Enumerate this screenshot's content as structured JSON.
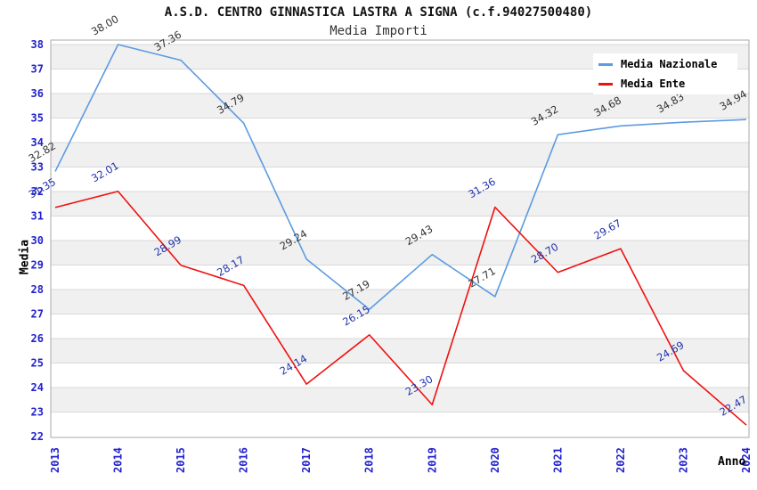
{
  "chart_data": {
    "type": "line",
    "title": "A.S.D. CENTRO GINNASTICA LASTRA A SIGNA (c.f.94027500480)",
    "subtitle": "Media Importi",
    "xlabel": "Anno",
    "ylabel": "Media",
    "x": [
      "2013",
      "2014",
      "2015",
      "2016",
      "2017",
      "2018",
      "2019",
      "2020",
      "2021",
      "2022",
      "2023",
      "2024"
    ],
    "ylim": [
      22,
      38
    ],
    "yticks": [
      22,
      23,
      24,
      25,
      26,
      27,
      28,
      29,
      30,
      31,
      32,
      33,
      34,
      35,
      36,
      37,
      38
    ],
    "grid": "horizontal-alternating-bands",
    "legend_position": "top-right-inside",
    "series": [
      {
        "name": "Media Nazionale",
        "color": "#5B9BE2",
        "label_color": "#333333",
        "values": [
          32.82,
          38.0,
          37.36,
          34.79,
          29.24,
          27.19,
          29.43,
          27.71,
          34.32,
          34.68,
          34.83,
          34.94
        ],
        "value_labels": [
          "32.82",
          "38.00",
          "37.36",
          "34.79",
          "29.24",
          "27.19",
          "29.43",
          "27.71",
          "34.32",
          "34.68",
          "34.83",
          "34.94"
        ]
      },
      {
        "name": "Media Ente",
        "color": "#EE1111",
        "label_color": "#2233AA",
        "values": [
          31.35,
          32.01,
          28.99,
          28.17,
          24.14,
          26.15,
          23.3,
          31.36,
          28.7,
          29.67,
          24.69,
          22.47
        ],
        "value_labels": [
          "31.35",
          "32.01",
          "28.99",
          "28.17",
          "24.14",
          "26.15",
          "23.30",
          "31.36",
          "28.70",
          "29.67",
          "24.69",
          "22.47"
        ]
      }
    ],
    "colors": {
      "axis_tick_labels": "#2222CC",
      "band_fill": "#F0F0F0",
      "grid_line": "#D8D8D8",
      "plot_border": "#AAAAAA",
      "background": "#FFFFFF"
    }
  }
}
